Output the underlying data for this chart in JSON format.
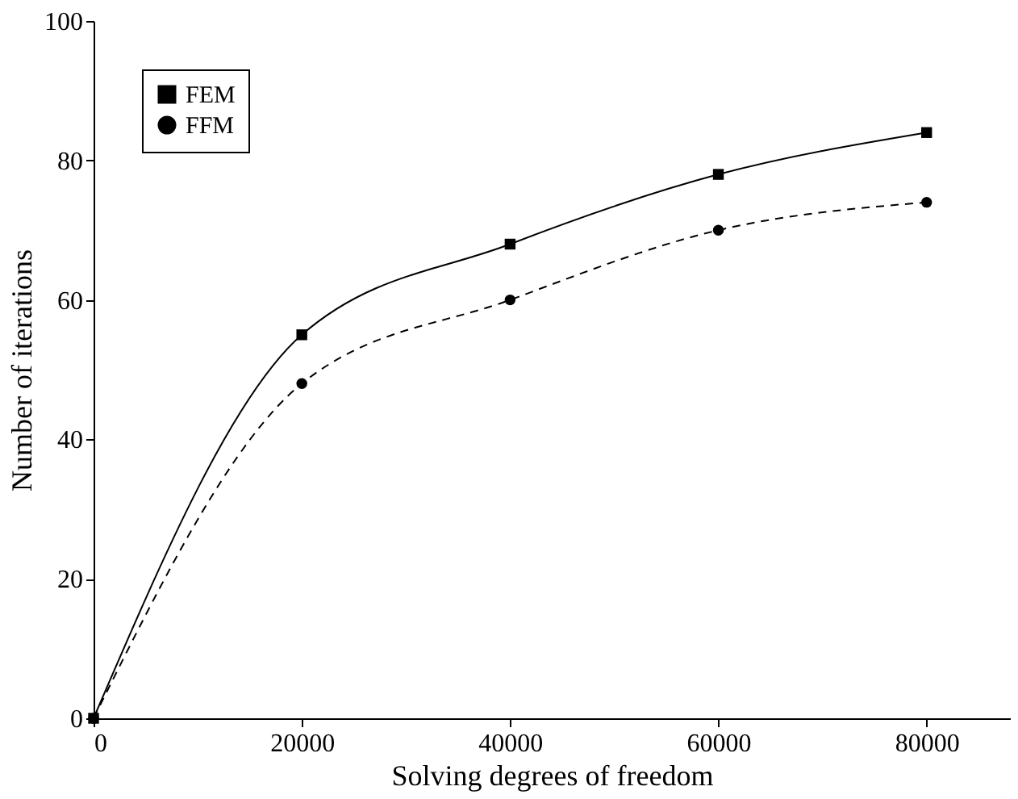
{
  "chart_data": {
    "type": "line",
    "xlabel": "Solving degrees of freedom",
    "ylabel": "Number of iterations",
    "x": [
      0,
      20000,
      40000,
      60000,
      80000
    ],
    "series": [
      {
        "name": "FEM",
        "color": "#000000",
        "marker": "square",
        "line_style": "solid",
        "values": [
          0,
          55,
          68,
          78,
          84
        ]
      },
      {
        "name": "FFM",
        "color": "#000000",
        "marker": "circle",
        "line_style": "dashed",
        "values": [
          0,
          48,
          60,
          70,
          74
        ]
      }
    ],
    "xlim": [
      0,
      88000
    ],
    "xticks": [
      0,
      20000,
      40000,
      60000,
      80000
    ],
    "ylim": [
      0,
      100
    ],
    "yticks": [
      0,
      20,
      40,
      60,
      80,
      100
    ],
    "grid": false,
    "legend": "top left"
  }
}
